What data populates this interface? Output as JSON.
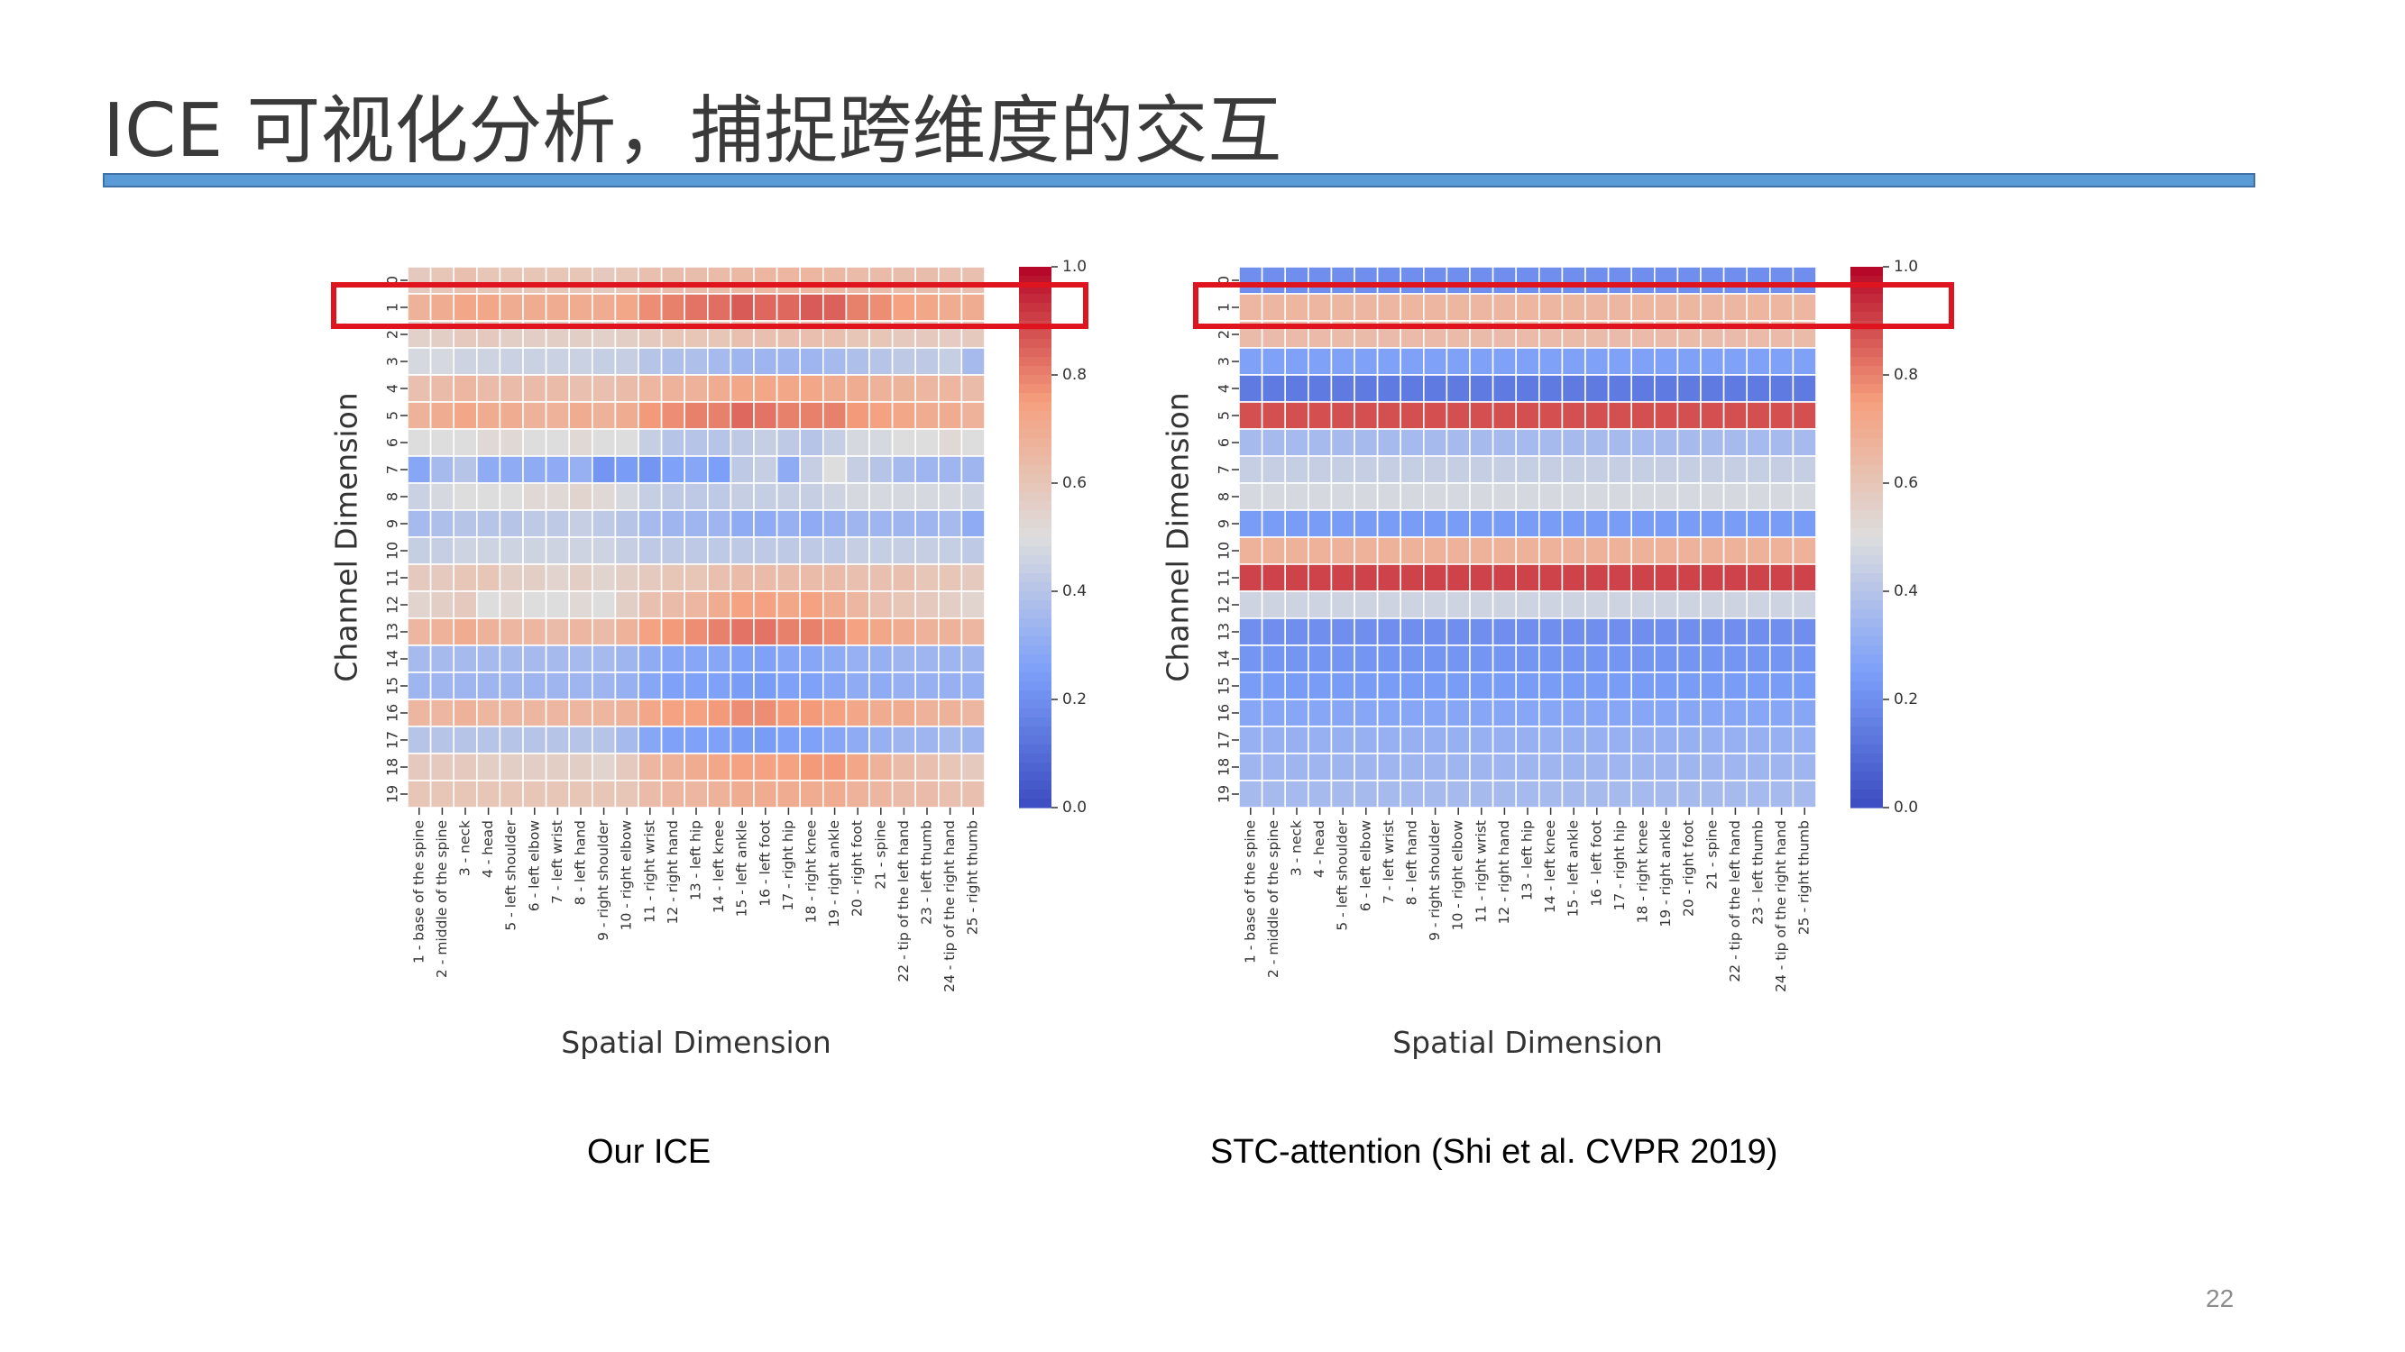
{
  "slide": {
    "title": "ICE 可视化分析，捕捉跨维度的交互",
    "page_number": "22",
    "colors": {
      "title_bar": "#5b9bd5",
      "highlight": "#e0141e"
    }
  },
  "chart_data": [
    {
      "type": "heatmap",
      "caption": "Our ICE",
      "xlabel": "Spatial Dimension",
      "ylabel": "Channel Dimension",
      "colormap": "coolwarm",
      "zlim": [
        0.0,
        1.0
      ],
      "colorbar_ticks": [
        "0.0",
        "0.2",
        "0.4",
        "0.6",
        "0.8",
        "1.0"
      ],
      "highlighted_row": 1,
      "rows": [
        "0",
        "1",
        "2",
        "3",
        "4",
        "5",
        "6",
        "7",
        "8",
        "9",
        "10",
        "11",
        "12",
        "13",
        "14",
        "15",
        "16",
        "17",
        "18",
        "19"
      ],
      "columns": [
        "1 - base of the spine",
        "2 - middle of the spine",
        "3 - neck",
        "4 - head",
        "5 - left shoulder",
        "6 - left elbow",
        "7 - left wrist",
        "8 - left hand",
        "9 - right shoulder",
        "10 - right elbow",
        "11 - right wrist",
        "12 - right hand",
        "13 - left hip",
        "14 - left knee",
        "15 - left ankle",
        "16 - left foot",
        "17 - right hip",
        "18 - right knee",
        "19 - right ankle",
        "20 - right foot",
        "21 - spine",
        "22 - tip of the left hand",
        "23 - left thumb",
        "24 - tip of the right hand",
        "25 - right thumb"
      ],
      "values": [
        [
          0.58,
          0.6,
          0.62,
          0.6,
          0.6,
          0.6,
          0.6,
          0.6,
          0.58,
          0.6,
          0.62,
          0.63,
          0.63,
          0.64,
          0.65,
          0.66,
          0.66,
          0.66,
          0.65,
          0.64,
          0.64,
          0.63,
          0.63,
          0.62,
          0.62
        ],
        [
          0.68,
          0.7,
          0.72,
          0.72,
          0.7,
          0.7,
          0.7,
          0.7,
          0.7,
          0.72,
          0.78,
          0.8,
          0.82,
          0.83,
          0.86,
          0.84,
          0.84,
          0.86,
          0.85,
          0.8,
          0.78,
          0.74,
          0.72,
          0.7,
          0.7
        ],
        [
          0.55,
          0.56,
          0.58,
          0.58,
          0.56,
          0.56,
          0.56,
          0.56,
          0.55,
          0.56,
          0.58,
          0.6,
          0.6,
          0.6,
          0.62,
          0.62,
          0.62,
          0.62,
          0.62,
          0.6,
          0.6,
          0.58,
          0.58,
          0.57,
          0.58
        ],
        [
          0.48,
          0.48,
          0.46,
          0.46,
          0.45,
          0.45,
          0.45,
          0.45,
          0.44,
          0.44,
          0.4,
          0.38,
          0.38,
          0.36,
          0.34,
          0.34,
          0.34,
          0.34,
          0.36,
          0.38,
          0.4,
          0.42,
          0.42,
          0.44,
          0.36
        ],
        [
          0.62,
          0.64,
          0.66,
          0.64,
          0.64,
          0.64,
          0.64,
          0.62,
          0.62,
          0.64,
          0.66,
          0.68,
          0.68,
          0.7,
          0.72,
          0.72,
          0.72,
          0.72,
          0.7,
          0.7,
          0.68,
          0.67,
          0.66,
          0.66,
          0.64
        ],
        [
          0.68,
          0.7,
          0.72,
          0.7,
          0.7,
          0.68,
          0.68,
          0.7,
          0.68,
          0.7,
          0.76,
          0.78,
          0.8,
          0.8,
          0.84,
          0.82,
          0.8,
          0.8,
          0.8,
          0.76,
          0.74,
          0.72,
          0.7,
          0.7,
          0.68
        ],
        [
          0.5,
          0.5,
          0.5,
          0.52,
          0.52,
          0.5,
          0.5,
          0.52,
          0.5,
          0.5,
          0.44,
          0.4,
          0.4,
          0.4,
          0.42,
          0.44,
          0.42,
          0.4,
          0.44,
          0.48,
          0.48,
          0.5,
          0.5,
          0.52,
          0.5
        ],
        [
          0.28,
          0.36,
          0.4,
          0.3,
          0.3,
          0.3,
          0.3,
          0.32,
          0.22,
          0.24,
          0.22,
          0.26,
          0.28,
          0.25,
          0.42,
          0.44,
          0.3,
          0.44,
          0.5,
          0.44,
          0.4,
          0.36,
          0.34,
          0.34,
          0.34
        ],
        [
          0.45,
          0.48,
          0.5,
          0.5,
          0.5,
          0.52,
          0.52,
          0.54,
          0.52,
          0.48,
          0.44,
          0.42,
          0.42,
          0.42,
          0.44,
          0.44,
          0.44,
          0.44,
          0.46,
          0.48,
          0.48,
          0.48,
          0.48,
          0.48,
          0.46
        ],
        [
          0.36,
          0.38,
          0.4,
          0.4,
          0.4,
          0.42,
          0.42,
          0.44,
          0.42,
          0.4,
          0.36,
          0.34,
          0.34,
          0.34,
          0.3,
          0.3,
          0.32,
          0.3,
          0.32,
          0.34,
          0.34,
          0.34,
          0.34,
          0.36,
          0.3
        ],
        [
          0.44,
          0.44,
          0.46,
          0.46,
          0.46,
          0.46,
          0.46,
          0.46,
          0.46,
          0.44,
          0.42,
          0.42,
          0.42,
          0.42,
          0.42,
          0.42,
          0.42,
          0.42,
          0.42,
          0.44,
          0.44,
          0.44,
          0.44,
          0.44,
          0.42
        ],
        [
          0.58,
          0.58,
          0.6,
          0.6,
          0.56,
          0.56,
          0.54,
          0.56,
          0.54,
          0.56,
          0.58,
          0.6,
          0.6,
          0.62,
          0.64,
          0.64,
          0.64,
          0.64,
          0.64,
          0.62,
          0.62,
          0.62,
          0.6,
          0.6,
          0.58
        ],
        [
          0.54,
          0.56,
          0.58,
          0.5,
          0.52,
          0.5,
          0.5,
          0.52,
          0.5,
          0.56,
          0.62,
          0.64,
          0.66,
          0.7,
          0.74,
          0.74,
          0.72,
          0.74,
          0.7,
          0.66,
          0.62,
          0.6,
          0.58,
          0.56,
          0.54
        ],
        [
          0.66,
          0.68,
          0.7,
          0.68,
          0.66,
          0.66,
          0.64,
          0.66,
          0.64,
          0.68,
          0.74,
          0.76,
          0.78,
          0.8,
          0.82,
          0.82,
          0.8,
          0.8,
          0.78,
          0.74,
          0.72,
          0.7,
          0.68,
          0.68,
          0.66
        ],
        [
          0.36,
          0.36,
          0.36,
          0.36,
          0.36,
          0.36,
          0.36,
          0.36,
          0.36,
          0.34,
          0.3,
          0.28,
          0.28,
          0.28,
          0.26,
          0.26,
          0.28,
          0.28,
          0.3,
          0.32,
          0.32,
          0.34,
          0.34,
          0.34,
          0.34
        ],
        [
          0.34,
          0.34,
          0.34,
          0.34,
          0.34,
          0.34,
          0.34,
          0.34,
          0.34,
          0.32,
          0.28,
          0.26,
          0.26,
          0.26,
          0.24,
          0.24,
          0.26,
          0.26,
          0.28,
          0.3,
          0.3,
          0.32,
          0.32,
          0.32,
          0.32
        ],
        [
          0.66,
          0.66,
          0.68,
          0.66,
          0.66,
          0.66,
          0.66,
          0.66,
          0.66,
          0.68,
          0.72,
          0.74,
          0.74,
          0.76,
          0.78,
          0.78,
          0.76,
          0.76,
          0.74,
          0.72,
          0.7,
          0.7,
          0.68,
          0.68,
          0.66
        ],
        [
          0.4,
          0.4,
          0.4,
          0.4,
          0.4,
          0.4,
          0.4,
          0.4,
          0.4,
          0.36,
          0.28,
          0.26,
          0.26,
          0.26,
          0.24,
          0.24,
          0.26,
          0.26,
          0.28,
          0.3,
          0.32,
          0.34,
          0.34,
          0.36,
          0.34
        ],
        [
          0.58,
          0.58,
          0.58,
          0.56,
          0.56,
          0.56,
          0.56,
          0.56,
          0.54,
          0.58,
          0.66,
          0.68,
          0.7,
          0.72,
          0.74,
          0.74,
          0.74,
          0.76,
          0.76,
          0.72,
          0.68,
          0.64,
          0.62,
          0.6,
          0.58
        ],
        [
          0.6,
          0.6,
          0.6,
          0.6,
          0.6,
          0.6,
          0.6,
          0.6,
          0.6,
          0.6,
          0.64,
          0.66,
          0.66,
          0.68,
          0.7,
          0.7,
          0.7,
          0.7,
          0.7,
          0.68,
          0.66,
          0.64,
          0.64,
          0.62,
          0.62
        ]
      ]
    },
    {
      "type": "heatmap",
      "caption": "STC-attention (Shi et al. CVPR 2019)",
      "xlabel": "Spatial Dimension",
      "ylabel": "Channel Dimension",
      "colormap": "coolwarm",
      "zlim": [
        0.0,
        1.0
      ],
      "colorbar_ticks": [
        "0.0",
        "0.2",
        "0.4",
        "0.6",
        "0.8",
        "1.0"
      ],
      "highlighted_row": 1,
      "rows": [
        "0",
        "1",
        "2",
        "3",
        "4",
        "5",
        "6",
        "7",
        "8",
        "9",
        "10",
        "11",
        "12",
        "13",
        "14",
        "15",
        "16",
        "17",
        "18",
        "19"
      ],
      "columns": [
        "1 - base of the spine",
        "2 - middle of the spine",
        "3 - neck",
        "4 - head",
        "5 - left shoulder",
        "6 - left elbow",
        "7 - left wrist",
        "8 - left hand",
        "9 - right shoulder",
        "10 - right elbow",
        "11 - right wrist",
        "12 - right hand",
        "13 - left hip",
        "14 - left knee",
        "15 - left ankle",
        "16 - left foot",
        "17 - right hip",
        "18 - right knee",
        "19 - right ankle",
        "20 - right foot",
        "21 - spine",
        "22 - tip of the left hand",
        "23 - left thumb",
        "24 - tip of the right hand",
        "25 - right thumb"
      ],
      "row_values": [
        0.2,
        0.66,
        0.64,
        0.26,
        0.14,
        0.88,
        0.36,
        0.44,
        0.48,
        0.24,
        0.68,
        0.9,
        0.46,
        0.2,
        0.22,
        0.24,
        0.28,
        0.32,
        0.34,
        0.36
      ],
      "values_note": ""
    }
  ]
}
